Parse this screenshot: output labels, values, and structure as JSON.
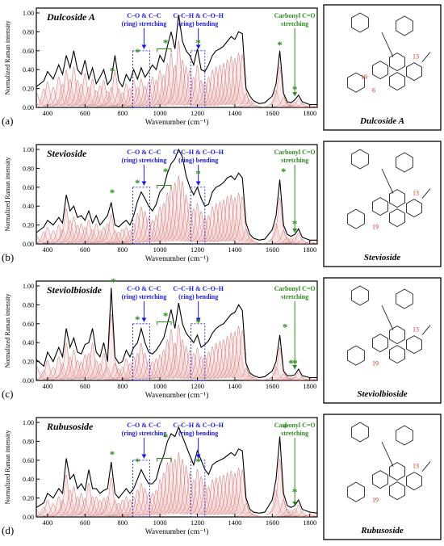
{
  "chart_data": [
    {
      "type": "line",
      "panel": "(a)",
      "title": "Dulcoside A",
      "molecule_name": "Dulcoside A",
      "xlabel": "Wavenumber (cm⁻¹)",
      "ylabel": "Normalized Raman intensity",
      "xlim": [
        340,
        1840
      ],
      "ylim": [
        0,
        1.0
      ],
      "xticks": [
        "400",
        "600",
        "800",
        "1000",
        "1200",
        "1400",
        "1600",
        "1800"
      ],
      "yticks": [
        "0.00",
        "0.20",
        "0.40",
        "0.60",
        "0.80",
        "1.00"
      ],
      "series": [
        {
          "x": [
            340,
            380,
            400,
            430,
            460,
            480,
            500,
            520,
            540,
            560,
            580,
            600,
            620,
            640,
            660,
            680,
            700,
            720,
            740,
            760,
            780,
            800,
            820,
            840,
            860,
            880,
            900,
            920,
            940,
            960,
            980,
            1000,
            1020,
            1040,
            1060,
            1080,
            1100,
            1120,
            1140,
            1160,
            1180,
            1200,
            1220,
            1240,
            1260,
            1280,
            1300,
            1320,
            1340,
            1360,
            1380,
            1400,
            1420,
            1440,
            1460,
            1480,
            1500,
            1530,
            1560,
            1600,
            1620,
            1640,
            1660,
            1680,
            1700,
            1720,
            1740,
            1760,
            1800,
            1840
          ],
          "y": [
            0.22,
            0.28,
            0.38,
            0.3,
            0.45,
            0.35,
            0.55,
            0.42,
            0.6,
            0.4,
            0.35,
            0.5,
            0.3,
            0.42,
            0.25,
            0.32,
            0.4,
            0.24,
            0.3,
            0.55,
            0.28,
            0.22,
            0.35,
            0.28,
            0.4,
            0.3,
            0.42,
            0.32,
            0.38,
            0.45,
            0.4,
            0.55,
            0.48,
            0.65,
            0.8,
            0.62,
            0.98,
            0.7,
            0.6,
            0.55,
            0.45,
            0.62,
            0.4,
            0.38,
            0.45,
            0.55,
            0.6,
            0.62,
            0.65,
            0.7,
            0.75,
            0.72,
            0.8,
            0.78,
            0.2,
            0.12,
            0.07,
            0.04,
            0.05,
            0.12,
            0.25,
            0.6,
            0.15,
            0.06,
            0.05,
            0.08,
            0.13,
            0.06,
            0.03,
            0.03
          ]
        }
      ],
      "annotations": [
        {
          "text": "C–O & C–C",
          "text2": "(ring) stretching",
          "color": "#1a1adb",
          "x": 915
        },
        {
          "text": "C–C–H & C–O–H",
          "text2": "(ring) bending",
          "color": "#1a1adb",
          "x": 1205
        },
        {
          "text": "Carbonyl C=O",
          "text2": "stretching",
          "color": "#2e8b1e",
          "x": 1720
        }
      ],
      "asterisks": [
        {
          "x": 745,
          "y": 0.32
        },
        {
          "x": 880,
          "y": 0.52
        },
        {
          "x": 1030,
          "y": 0.62
        },
        {
          "x": 1205,
          "y": 0.62
        },
        {
          "x": 1640,
          "y": 0.6
        },
        {
          "x": 1720,
          "y": 0.13
        }
      ],
      "atom_labels": [
        "13",
        "6",
        "19"
      ]
    },
    {
      "type": "line",
      "panel": "(b)",
      "title": "Stevioside",
      "molecule_name": "Stevioside",
      "xlabel": "Wavenumber (cm⁻¹)",
      "ylabel": "Normalized Raman intensity",
      "xlim": [
        340,
        1840
      ],
      "ylim": [
        0,
        1.0
      ],
      "xticks": [
        "400",
        "600",
        "800",
        "1000",
        "1200",
        "1400",
        "1600",
        "1800"
      ],
      "yticks": [
        "0.00",
        "0.20",
        "0.40",
        "0.60",
        "0.80",
        "1.00"
      ],
      "series": [
        {
          "x": [
            340,
            380,
            400,
            430,
            460,
            480,
            500,
            520,
            540,
            560,
            580,
            600,
            620,
            640,
            660,
            680,
            700,
            720,
            740,
            760,
            780,
            800,
            820,
            840,
            860,
            880,
            900,
            920,
            940,
            960,
            980,
            1000,
            1020,
            1040,
            1060,
            1080,
            1100,
            1120,
            1140,
            1160,
            1180,
            1200,
            1220,
            1240,
            1260,
            1280,
            1300,
            1320,
            1340,
            1360,
            1380,
            1400,
            1420,
            1440,
            1460,
            1480,
            1500,
            1530,
            1560,
            1600,
            1620,
            1640,
            1660,
            1680,
            1700,
            1720,
            1740,
            1760,
            1800,
            1840
          ],
          "y": [
            0.12,
            0.18,
            0.25,
            0.2,
            0.28,
            0.22,
            0.52,
            0.35,
            0.4,
            0.28,
            0.3,
            0.25,
            0.35,
            0.22,
            0.3,
            0.2,
            0.25,
            0.3,
            0.44,
            0.2,
            0.18,
            0.22,
            0.25,
            0.2,
            0.3,
            0.45,
            0.55,
            0.48,
            0.4,
            0.35,
            0.42,
            0.55,
            0.6,
            0.75,
            0.85,
            0.9,
            1.0,
            0.92,
            0.72,
            0.6,
            0.52,
            0.6,
            0.48,
            0.4,
            0.42,
            0.55,
            0.6,
            0.62,
            0.65,
            0.7,
            0.72,
            0.68,
            0.75,
            0.7,
            0.22,
            0.1,
            0.06,
            0.04,
            0.05,
            0.15,
            0.3,
            0.68,
            0.2,
            0.1,
            0.08,
            0.1,
            0.16,
            0.07,
            0.04,
            0.04
          ]
        }
      ],
      "annotations": [
        {
          "text": "C–O & C–C",
          "text2": "(ring) stretching",
          "color": "#1a1adb",
          "x": 915
        },
        {
          "text": "C–C–H & C–O–H",
          "text2": "(ring) bending",
          "color": "#1a1adb",
          "x": 1205
        },
        {
          "text": "Carbonyl C=O",
          "text2": "stretching",
          "color": "#2e8b1e",
          "x": 1720
        }
      ],
      "asterisks": [
        {
          "x": 745,
          "y": 0.48
        },
        {
          "x": 880,
          "y": 0.58
        },
        {
          "x": 1030,
          "y": 0.7
        },
        {
          "x": 1205,
          "y": 0.68
        },
        {
          "x": 1660,
          "y": 0.7
        },
        {
          "x": 1720,
          "y": 0.15
        }
      ],
      "atom_labels": [
        "13",
        "19"
      ]
    },
    {
      "type": "line",
      "panel": "(c)",
      "title": "Steviolbioside",
      "molecule_name": "Steviolbioside",
      "xlabel": "Wavenumber (cm⁻¹)",
      "ylabel": "Normalized Raman intensity",
      "xlim": [
        340,
        1840
      ],
      "ylim": [
        0,
        1.0
      ],
      "xticks": [
        "400",
        "600",
        "800",
        "1000",
        "1200",
        "1400",
        "1600",
        "1800"
      ],
      "yticks": [
        "0.00",
        "0.20",
        "0.40",
        "0.60",
        "0.80",
        "1.00"
      ],
      "series": [
        {
          "x": [
            340,
            380,
            400,
            430,
            460,
            480,
            500,
            520,
            540,
            560,
            580,
            600,
            620,
            640,
            660,
            680,
            700,
            720,
            740,
            760,
            780,
            800,
            820,
            840,
            860,
            880,
            900,
            920,
            940,
            960,
            980,
            1000,
            1020,
            1040,
            1060,
            1080,
            1100,
            1120,
            1140,
            1160,
            1180,
            1200,
            1220,
            1240,
            1260,
            1280,
            1300,
            1320,
            1340,
            1360,
            1380,
            1400,
            1420,
            1440,
            1460,
            1480,
            1500,
            1530,
            1560,
            1600,
            1620,
            1640,
            1660,
            1680,
            1700,
            1720,
            1740,
            1760,
            1800,
            1840
          ],
          "y": [
            0.22,
            0.15,
            0.3,
            0.2,
            0.35,
            0.25,
            0.55,
            0.35,
            0.45,
            0.3,
            0.28,
            0.38,
            0.4,
            0.55,
            0.3,
            0.25,
            0.4,
            0.2,
            0.98,
            0.25,
            0.18,
            0.2,
            0.32,
            0.25,
            0.35,
            0.4,
            0.55,
            0.4,
            0.3,
            0.28,
            0.32,
            0.38,
            0.45,
            0.6,
            0.75,
            0.55,
            0.82,
            0.6,
            0.5,
            0.45,
            0.4,
            0.48,
            0.35,
            0.38,
            0.42,
            0.5,
            0.55,
            0.58,
            0.6,
            0.65,
            0.7,
            0.72,
            0.8,
            0.74,
            0.18,
            0.08,
            0.05,
            0.03,
            0.04,
            0.1,
            0.2,
            0.48,
            0.1,
            0.05,
            0.05,
            0.06,
            0.12,
            0.05,
            0.03,
            0.03
          ]
        }
      ],
      "annotations": [
        {
          "text": "C–O & C–C",
          "text2": "(ring) stretching",
          "color": "#1a1adb",
          "x": 915
        },
        {
          "text": "C–C–H & C–O–H",
          "text2": "(ring) bending",
          "color": "#1a1adb",
          "x": 1205
        },
        {
          "text": "Carbonyl C=O",
          "text2": "stretching",
          "color": "#2e8b1e",
          "x": 1720
        }
      ],
      "asterisks": [
        {
          "x": 752,
          "y": 0.98
        },
        {
          "x": 880,
          "y": 0.58
        },
        {
          "x": 1030,
          "y": 0.62
        },
        {
          "x": 1205,
          "y": 0.55
        },
        {
          "x": 1668,
          "y": 0.5
        },
        {
          "x": 1700,
          "y": 0.12
        },
        {
          "x": 1722,
          "y": 0.12
        }
      ],
      "atom_labels": [
        "13",
        "19"
      ]
    },
    {
      "type": "line",
      "panel": "(d)",
      "title": "Rubusoside",
      "molecule_name": "Rubusoside",
      "xlabel": "Wavenumber (cm⁻¹)",
      "ylabel": "Normalized Raman intensity",
      "xlim": [
        340,
        1840
      ],
      "ylim": [
        0,
        1.0
      ],
      "xticks": [
        "400",
        "600",
        "800",
        "1000",
        "1200",
        "1400",
        "1600",
        "1800"
      ],
      "yticks": [
        "0.00",
        "0.20",
        "0.40",
        "0.60",
        "0.80",
        "1.00"
      ],
      "series": [
        {
          "x": [
            340,
            380,
            400,
            430,
            460,
            480,
            500,
            520,
            540,
            560,
            580,
            600,
            620,
            640,
            660,
            680,
            700,
            720,
            740,
            760,
            780,
            800,
            820,
            840,
            860,
            880,
            900,
            920,
            940,
            960,
            980,
            1000,
            1020,
            1040,
            1060,
            1080,
            1100,
            1120,
            1140,
            1160,
            1180,
            1200,
            1220,
            1240,
            1260,
            1280,
            1300,
            1320,
            1340,
            1360,
            1380,
            1400,
            1420,
            1440,
            1460,
            1480,
            1500,
            1530,
            1560,
            1600,
            1620,
            1640,
            1660,
            1680,
            1700,
            1720,
            1740,
            1760,
            1800,
            1840
          ],
          "y": [
            0.1,
            0.15,
            0.25,
            0.2,
            0.3,
            0.25,
            0.62,
            0.4,
            0.45,
            0.3,
            0.35,
            0.28,
            0.5,
            0.3,
            0.3,
            0.25,
            0.28,
            0.3,
            0.58,
            0.25,
            0.2,
            0.25,
            0.3,
            0.25,
            0.3,
            0.4,
            0.5,
            0.42,
            0.35,
            0.35,
            0.4,
            0.55,
            0.65,
            0.8,
            0.88,
            0.85,
            0.95,
            0.85,
            0.75,
            0.65,
            0.55,
            0.7,
            0.6,
            0.5,
            0.45,
            0.55,
            0.58,
            0.6,
            0.62,
            0.65,
            0.68,
            0.65,
            0.72,
            0.7,
            0.2,
            0.08,
            0.05,
            0.04,
            0.05,
            0.18,
            0.4,
            0.85,
            0.25,
            0.12,
            0.1,
            0.12,
            0.18,
            0.08,
            0.05,
            0.04
          ]
        }
      ],
      "annotations": [
        {
          "text": "C–O & C–C",
          "text2": "(ring) stretching",
          "color": "#1a1adb",
          "x": 915
        },
        {
          "text": "C–C–H & C–O–H",
          "text2": "(ring) bending",
          "color": "#1a1adb",
          "x": 1205
        },
        {
          "text": "Carbonyl C=O",
          "text2": "stretching",
          "color": "#2e8b1e",
          "x": 1720
        }
      ],
      "asterisks": [
        {
          "x": 745,
          "y": 0.6
        },
        {
          "x": 880,
          "y": 0.52
        },
        {
          "x": 1030,
          "y": 0.78
        },
        {
          "x": 1205,
          "y": 0.52
        },
        {
          "x": 1668,
          "y": 0.88
        },
        {
          "x": 1720,
          "y": 0.2
        }
      ],
      "atom_labels": [
        "13",
        "19"
      ]
    }
  ],
  "colors": {
    "spectrum": "#000000",
    "fit_peaks": "#c04040",
    "fit_fill": "#f2c8c8",
    "blue_annotation": "#1a1adb",
    "green_annotation": "#2e8b1e",
    "atom_label": "#cc3322"
  }
}
